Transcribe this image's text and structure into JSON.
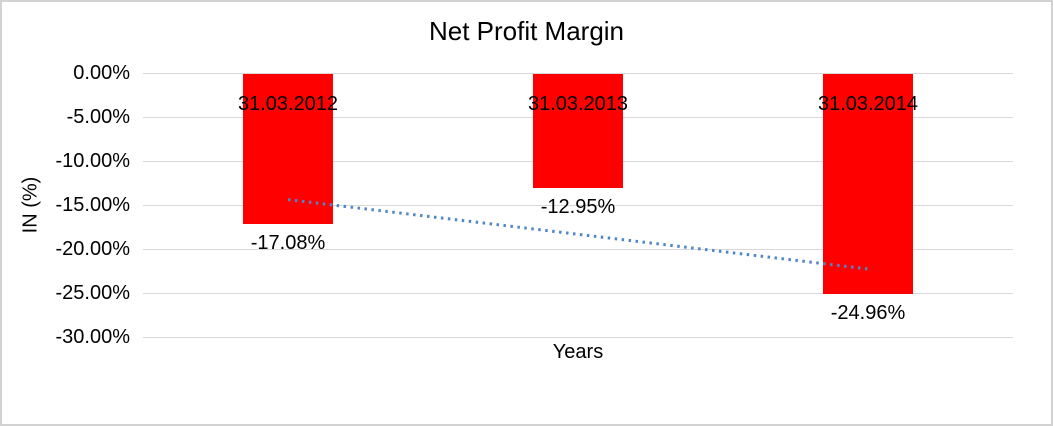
{
  "chart_data": {
    "type": "bar",
    "title": "Net Profit Margin",
    "xlabel": "Years",
    "ylabel": "IN (%)",
    "categories": [
      "31.03.2012",
      "31.03.2013",
      "31.03.2014"
    ],
    "values": [
      -17.08,
      -12.95,
      -24.96
    ],
    "data_labels": [
      "-17.08%",
      "-12.95%",
      "-24.96%"
    ],
    "ylim": [
      -30,
      0
    ],
    "ytick_values": [
      0,
      -5,
      -10,
      -15,
      -20,
      -25,
      -30
    ],
    "ytick_labels": [
      "0.00%",
      "-5.00%",
      "-10.00%",
      "-15.00%",
      "-20.00%",
      "-25.00%",
      "-30.00%"
    ],
    "grid": true,
    "legend": false,
    "bar_color": "#ff0000",
    "gridline_color": "#d9d9d9",
    "text_color": "#000000",
    "trendline": {
      "type": "linear",
      "style": "dotted",
      "color": "#4f86c6",
      "start_value": -14.39,
      "end_value": -22.27
    }
  }
}
